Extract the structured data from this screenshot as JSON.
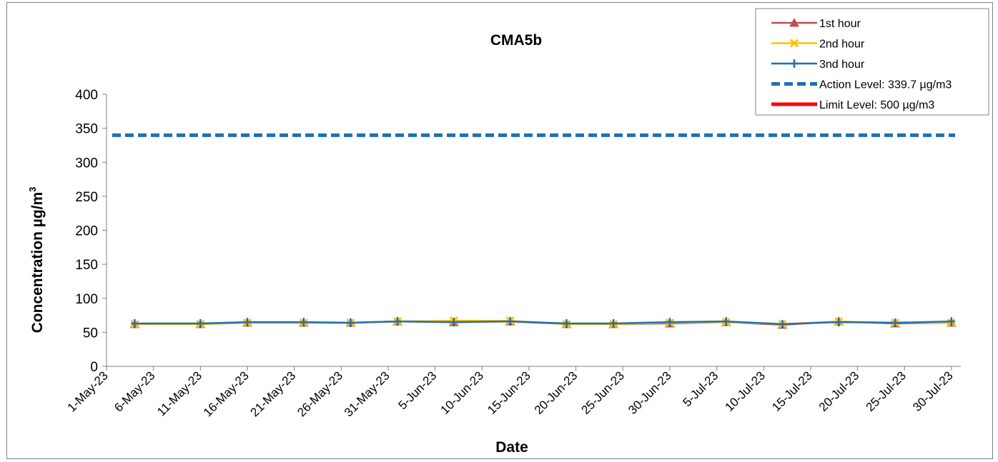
{
  "chart_data": {
    "type": "line",
    "title": "CMA5b",
    "xlabel": "Date",
    "ylabel": "Concentration µg/m",
    "ylabel_superscript": "3",
    "ylim": [
      0,
      400
    ],
    "y_ticks": [
      0,
      50,
      100,
      150,
      200,
      250,
      300,
      350,
      400
    ],
    "x_range": [
      "2023-05-01",
      "2023-07-31"
    ],
    "x_tick_dates": [
      "2023-05-01",
      "2023-05-06",
      "2023-05-11",
      "2023-05-16",
      "2023-05-21",
      "2023-05-26",
      "2023-05-31",
      "2023-06-05",
      "2023-06-10",
      "2023-06-15",
      "2023-06-20",
      "2023-06-25",
      "2023-06-30",
      "2023-07-05",
      "2023-07-10",
      "2023-07-15",
      "2023-07-20",
      "2023-07-25",
      "2023-07-30"
    ],
    "x_tick_labels": [
      "1-May-23",
      "6-May-23",
      "11-May-23",
      "16-May-23",
      "21-May-23",
      "26-May-23",
      "31-May-23",
      "5-Jun-23",
      "10-Jun-23",
      "15-Jun-23",
      "20-Jun-23",
      "25-Jun-23",
      "30-Jun-23",
      "5-Jul-23",
      "10-Jul-23",
      "15-Jul-23",
      "20-Jul-23",
      "25-Jul-23",
      "30-Jul-23"
    ],
    "x": [
      "2023-05-04",
      "2023-05-11",
      "2023-05-16",
      "2023-05-22",
      "2023-05-27",
      "2023-06-01",
      "2023-06-07",
      "2023-06-13",
      "2023-06-19",
      "2023-06-24",
      "2023-06-30",
      "2023-07-06",
      "2023-07-12",
      "2023-07-18",
      "2023-07-24",
      "2023-07-30"
    ],
    "grid": false,
    "legend_position": "top-right",
    "series": [
      {
        "name": "1st hour",
        "color": "#c0504d",
        "marker": "triangle",
        "values": [
          62,
          62,
          64,
          64,
          64,
          66,
          65,
          66,
          62,
          62,
          63,
          65,
          61,
          66,
          63,
          64
        ]
      },
      {
        "name": "2nd hour",
        "color": "#ffc000",
        "marker": "x",
        "values": [
          62,
          62,
          64,
          64,
          64,
          66,
          67,
          67,
          62,
          62,
          64,
          65,
          62,
          66,
          64,
          64
        ]
      },
      {
        "name": "3nd hour",
        "color": "#1f6fb5",
        "marker": "plus",
        "values": [
          63,
          63,
          65,
          65,
          64,
          66,
          65,
          66,
          63,
          63,
          65,
          66,
          62,
          65,
          64,
          66
        ]
      }
    ],
    "reference_lines": [
      {
        "name": "Action Level: 339.7 µg/m3",
        "value": 339.7,
        "color": "#1f6fb5",
        "style": "dashed"
      },
      {
        "name": "Limit Level: 500 µg/m3",
        "value": 500,
        "color": "#ff0000",
        "style": "solid"
      }
    ]
  }
}
